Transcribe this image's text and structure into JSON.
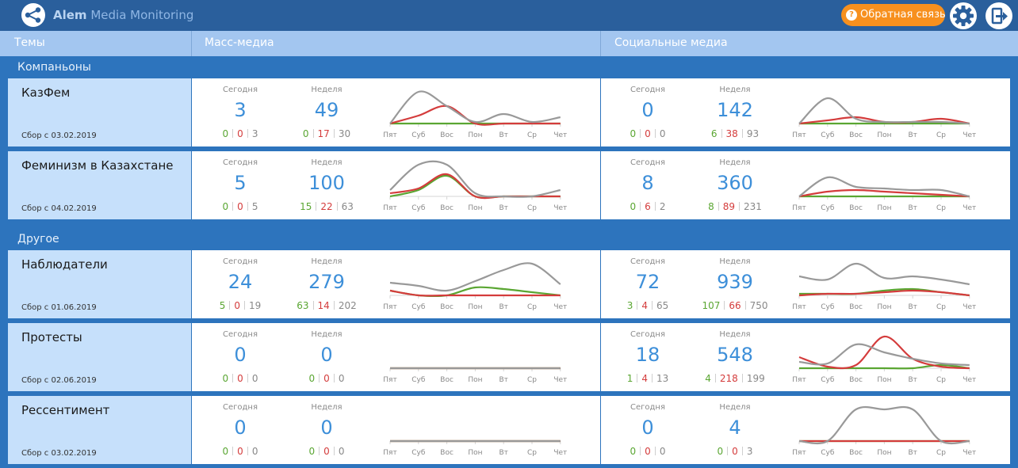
{
  "header": {
    "brand_bold": "Alem",
    "brand_rest": " Media Monitoring",
    "feedback_label": "Обратная связь",
    "feedback_icon_text": "?"
  },
  "columns": {
    "topics": "Темы",
    "mass_media": "Масс-медиа",
    "social_media": "Социальные медиа"
  },
  "labels": {
    "today": "Сегодня",
    "week": "Неделя"
  },
  "days": [
    "Пят",
    "Суб",
    "Вос",
    "Пон",
    "Вт",
    "Ср",
    "Чет"
  ],
  "colors": {
    "positive": "#5aa632",
    "negative": "#d43c3c",
    "neutral": "#999999"
  },
  "groups": [
    {
      "title": "Компаньоны",
      "topics": [
        {
          "name": "КазФем",
          "since": "Сбор с 03.02.2019",
          "mass": {
            "today": {
              "total": "3",
              "pos": "0",
              "neg": "0",
              "neu": "3"
            },
            "week": {
              "total": "49",
              "pos": "0",
              "neg": "17",
              "neu": "30"
            },
            "chart": {
              "neutral": [
                0.0,
                1.0,
                0.55,
                0.05,
                0.3,
                0.05,
                0.2
              ],
              "negative": [
                0.0,
                0.25,
                0.55,
                0.0,
                0.0,
                0.0,
                0.0
              ],
              "positive": [
                0.0,
                0.0,
                0.0,
                0.0,
                0.0,
                0.0,
                0.0
              ]
            }
          },
          "social": {
            "today": {
              "total": "0",
              "pos": "0",
              "neg": "0",
              "neu": "0"
            },
            "week": {
              "total": "142",
              "pos": "6",
              "neg": "38",
              "neu": "93"
            },
            "chart": {
              "neutral": [
                0.0,
                0.8,
                0.15,
                0.05,
                0.05,
                0.05,
                0.0
              ],
              "negative": [
                0.0,
                0.1,
                0.2,
                0.05,
                0.05,
                0.15,
                0.0
              ],
              "positive": [
                0.0,
                0.0,
                0.0,
                0.0,
                0.0,
                0.0,
                0.0
              ]
            }
          }
        },
        {
          "name": "Феминизм в Казахстане",
          "since": "Сбор с 04.02.2019",
          "mass": {
            "today": {
              "total": "5",
              "pos": "0",
              "neg": "0",
              "neu": "5"
            },
            "week": {
              "total": "100",
              "pos": "15",
              "neg": "22",
              "neu": "63"
            },
            "chart": {
              "neutral": [
                0.2,
                1.0,
                1.0,
                0.1,
                0.0,
                0.0,
                0.2
              ],
              "negative": [
                0.1,
                0.25,
                0.7,
                0.0,
                0.0,
                0.0,
                0.0
              ],
              "positive": [
                0.0,
                0.2,
                0.65,
                0.0,
                0.0,
                0.0,
                0.0
              ]
            }
          },
          "social": {
            "today": {
              "total": "8",
              "pos": "0",
              "neg": "6",
              "neu": "2"
            },
            "week": {
              "total": "360",
              "pos": "8",
              "neg": "89",
              "neu": "231"
            },
            "chart": {
              "neutral": [
                0.0,
                0.6,
                0.3,
                0.25,
                0.2,
                0.2,
                0.0
              ],
              "negative": [
                0.0,
                0.15,
                0.2,
                0.15,
                0.1,
                0.05,
                0.0
              ],
              "positive": [
                0.0,
                0.0,
                0.0,
                0.0,
                0.0,
                0.0,
                0.0
              ]
            }
          }
        }
      ]
    },
    {
      "title": "Другое",
      "topics": [
        {
          "name": "Наблюдатели",
          "since": "Сбор с 01.06.2019",
          "mass": {
            "today": {
              "total": "24",
              "pos": "5",
              "neg": "0",
              "neu": "19"
            },
            "week": {
              "total": "279",
              "pos": "63",
              "neg": "14",
              "neu": "202"
            },
            "chart": {
              "neutral": [
                0.4,
                0.3,
                0.15,
                0.45,
                0.8,
                1.0,
                0.35
              ],
              "negative": [
                0.15,
                0.0,
                0.0,
                0.0,
                0.0,
                0.0,
                0.0
              ],
              "positive": [
                0.15,
                0.0,
                0.0,
                0.25,
                0.2,
                0.1,
                0.0
              ]
            }
          },
          "social": {
            "today": {
              "total": "72",
              "pos": "3",
              "neg": "4",
              "neu": "65"
            },
            "week": {
              "total": "939",
              "pos": "107",
              "neg": "66",
              "neu": "750"
            },
            "chart": {
              "neutral": [
                0.6,
                0.5,
                1.0,
                0.55,
                0.6,
                0.5,
                0.35
              ],
              "negative": [
                0.0,
                0.05,
                0.05,
                0.1,
                0.15,
                0.1,
                0.0
              ],
              "positive": [
                0.05,
                0.05,
                0.05,
                0.15,
                0.2,
                0.1,
                0.0
              ]
            }
          }
        },
        {
          "name": "Протесты",
          "since": "Сбор с 02.06.2019",
          "mass": {
            "today": {
              "total": "0",
              "pos": "0",
              "neg": "0",
              "neu": "0"
            },
            "week": {
              "total": "0",
              "pos": "0",
              "neg": "0",
              "neu": "0"
            },
            "chart": {
              "neutral": [
                0,
                0,
                0,
                0,
                0,
                0,
                0
              ],
              "negative": [
                0,
                0,
                0,
                0,
                0,
                0,
                0
              ],
              "positive": [
                0,
                0,
                0,
                0,
                0,
                0,
                0
              ]
            }
          },
          "social": {
            "today": {
              "total": "18",
              "pos": "1",
              "neg": "4",
              "neu": "13"
            },
            "week": {
              "total": "548",
              "pos": "4",
              "neg": "218",
              "neu": "199"
            },
            "chart": {
              "neutral": [
                0.2,
                0.15,
                0.75,
                0.5,
                0.3,
                0.15,
                0.1
              ],
              "negative": [
                0.35,
                0.05,
                0.1,
                1.0,
                0.3,
                0.05,
                0.0
              ],
              "positive": [
                0.0,
                0.0,
                0.0,
                0.0,
                0.0,
                0.1,
                0.0
              ]
            }
          }
        },
        {
          "name": "Рессентимент",
          "since": "Сбор с 03.02.2019",
          "mass": {
            "today": {
              "total": "0",
              "pos": "0",
              "neg": "0",
              "neu": "0"
            },
            "week": {
              "total": "0",
              "pos": "0",
              "neg": "0",
              "neu": "0"
            },
            "chart": {
              "neutral": [
                0,
                0,
                0,
                0,
                0,
                0,
                0
              ],
              "negative": [
                0,
                0,
                0,
                0,
                0,
                0,
                0
              ],
              "positive": [
                0,
                0,
                0,
                0,
                0,
                0,
                0
              ]
            }
          },
          "social": {
            "today": {
              "total": "0",
              "pos": "0",
              "neg": "0",
              "neu": "0"
            },
            "week": {
              "total": "4",
              "pos": "0",
              "neg": "0",
              "neu": "3"
            },
            "chart": {
              "neutral": [
                0,
                0,
                1.0,
                1.0,
                1.0,
                0,
                0
              ],
              "negative": [
                0,
                0,
                0,
                0,
                0,
                0,
                0
              ],
              "positive": [
                0,
                0,
                0,
                0,
                0,
                0,
                0
              ]
            }
          }
        }
      ]
    }
  ]
}
